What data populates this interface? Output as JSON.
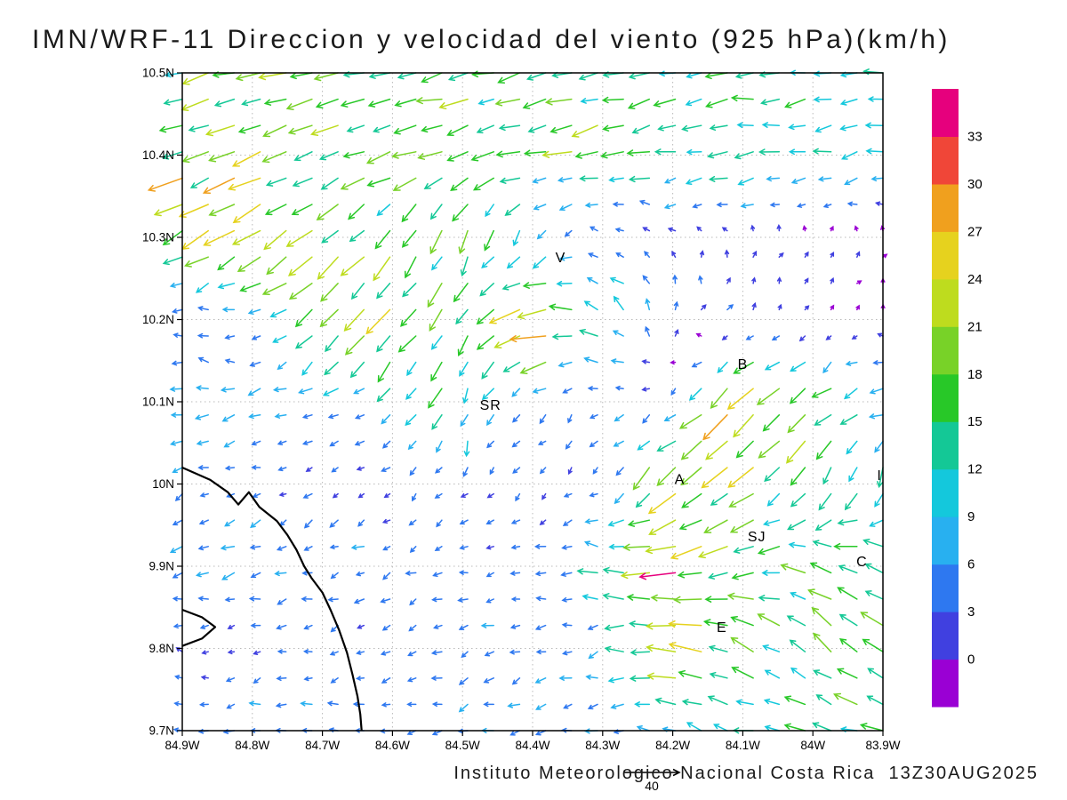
{
  "title": "IMN/WRF-11 Direccion y velocidad del viento (925 hPa)(km/h)",
  "caption": "Instituto Meteorologico Nacional Costa Rica  13Z30AUG2025",
  "ref_vector": {
    "label": "40"
  },
  "chart_data": {
    "type": "vector_field",
    "units": "km/h",
    "level": "925 hPa",
    "x_axis": {
      "ticks": [
        "84.9W",
        "84.8W",
        "84.7W",
        "84.6W",
        "84.5W",
        "84.4W",
        "84.3W",
        "84.2W",
        "84.1W",
        "84W",
        "83.9W"
      ],
      "lon_west_max": 84.9,
      "lon_west_min": 83.9
    },
    "y_axis": {
      "ticks": [
        "10.5N",
        "10.4N",
        "10.3N",
        "10.2N",
        "10.1N",
        "10N",
        "9.9N",
        "9.8N",
        "9.7N"
      ],
      "lat_max": 10.5,
      "lat_min": 9.7
    },
    "colorbar": {
      "levels": [
        0,
        3,
        6,
        9,
        12,
        15,
        18,
        21,
        24,
        27,
        30,
        33
      ],
      "colors": [
        "#9a00d4",
        "#4040e0",
        "#2e78f0",
        "#28b0f0",
        "#14c8dc",
        "#14c896",
        "#28c828",
        "#78d228",
        "#bedc1e",
        "#e6d21e",
        "#f0a01e",
        "#f04638",
        "#e6007d"
      ]
    },
    "grid": {
      "lons": [
        84.9,
        84.8,
        84.7,
        84.6,
        84.5,
        84.4,
        84.3,
        84.2,
        84.1,
        84.0,
        83.9
      ],
      "lats": [
        10.5,
        10.4,
        10.3,
        10.2,
        10.1,
        10.0,
        9.9,
        9.8,
        9.7
      ],
      "note": "u eastward / v northward wind components in km/h on a coarse 0.1-degree grid; displayed arrows are a bilinearly interpolated field"
    },
    "u": [
      [
        -16,
        -17,
        -15,
        -15,
        -14,
        -14,
        -14,
        -13,
        -13,
        -13,
        -13
      ],
      [
        -18,
        -19,
        -17,
        -16,
        -15,
        -14,
        -13,
        -12,
        -12,
        -11,
        -11
      ],
      [
        -17,
        -18,
        -14,
        -10,
        -6,
        -4,
        -2,
        -1,
        0,
        1,
        1
      ],
      [
        -3,
        -4,
        -13,
        -15,
        -8,
        -24,
        -12,
        2,
        1,
        1,
        0
      ],
      [
        -7,
        -7,
        -6,
        -5,
        -4,
        -3,
        -3,
        -3,
        -20,
        -14,
        -8
      ],
      [
        -4,
        -3,
        -2,
        -2,
        -2,
        -2,
        -3,
        -16,
        -16,
        -8,
        -4
      ],
      [
        -8,
        -7,
        -5,
        -4,
        -4,
        -4,
        -10,
        -22,
        -18,
        -14,
        -16
      ],
      [
        -2,
        -2,
        -3,
        -3,
        -4,
        -4,
        -6,
        -24,
        -16,
        -12,
        -12
      ],
      [
        -5,
        -6,
        -6,
        -5,
        -6,
        -6,
        -6,
        -8,
        -10,
        -14,
        -15
      ]
    ],
    "v": [
      [
        -5,
        -4,
        -3,
        -4,
        -3,
        -3,
        -2,
        -2,
        -2,
        -2,
        -2
      ],
      [
        -7,
        -8,
        -6,
        -6,
        -5,
        -4,
        -3,
        -3,
        -2,
        -2,
        -2
      ],
      [
        -10,
        -12,
        -12,
        -12,
        -14,
        -6,
        2,
        2,
        2,
        1,
        1
      ],
      [
        2,
        1,
        -14,
        -16,
        -13,
        -5,
        8,
        4,
        2,
        1,
        1
      ],
      [
        -1,
        -1,
        -2,
        -6,
        -13,
        -4,
        -2,
        -3,
        -20,
        -12,
        -1
      ],
      [
        -2,
        -1,
        -1,
        -2,
        -2,
        -2,
        -3,
        -14,
        -10,
        -14,
        -14
      ],
      [
        -2,
        -2,
        -2,
        -2,
        -1,
        0,
        2,
        -2,
        -4,
        6,
        8
      ],
      [
        1,
        -1,
        -1,
        -2,
        -2,
        -2,
        -2,
        2,
        6,
        10,
        10
      ],
      [
        0,
        -1,
        -1,
        -1,
        -2,
        -1,
        0,
        2,
        3,
        4,
        3
      ]
    ],
    "stations": [
      {
        "label": "V",
        "lon": 84.36,
        "lat": 10.27
      },
      {
        "label": "B",
        "lon": 84.1,
        "lat": 10.14
      },
      {
        "label": "SR",
        "lon": 84.46,
        "lat": 10.09
      },
      {
        "label": "A",
        "lon": 84.19,
        "lat": 10.0
      },
      {
        "label": "SJ",
        "lon": 84.08,
        "lat": 9.93
      },
      {
        "label": "C",
        "lon": 83.93,
        "lat": 9.9
      },
      {
        "label": "E",
        "lon": 84.13,
        "lat": 9.82
      },
      {
        "label": "I",
        "lon": 83.905,
        "lat": 10.005
      }
    ],
    "coastline": {
      "mainland": [
        [
          84.9,
          10.02
        ],
        [
          84.86,
          10.005
        ],
        [
          84.835,
          9.99
        ],
        [
          84.82,
          9.975
        ],
        [
          84.805,
          9.99
        ],
        [
          84.79,
          9.972
        ],
        [
          84.765,
          9.955
        ],
        [
          84.75,
          9.938
        ],
        [
          84.737,
          9.92
        ],
        [
          84.726,
          9.9
        ],
        [
          84.715,
          9.885
        ],
        [
          84.7,
          9.868
        ],
        [
          84.688,
          9.846
        ],
        [
          84.676,
          9.822
        ],
        [
          84.665,
          9.795
        ],
        [
          84.657,
          9.768
        ],
        [
          84.65,
          9.742
        ],
        [
          84.646,
          9.72
        ],
        [
          84.644,
          9.7
        ]
      ],
      "peninsula": [
        [
          84.9,
          9.847
        ],
        [
          84.872,
          9.838
        ],
        [
          84.853,
          9.826
        ],
        [
          84.872,
          9.812
        ],
        [
          84.9,
          9.803
        ]
      ]
    }
  }
}
